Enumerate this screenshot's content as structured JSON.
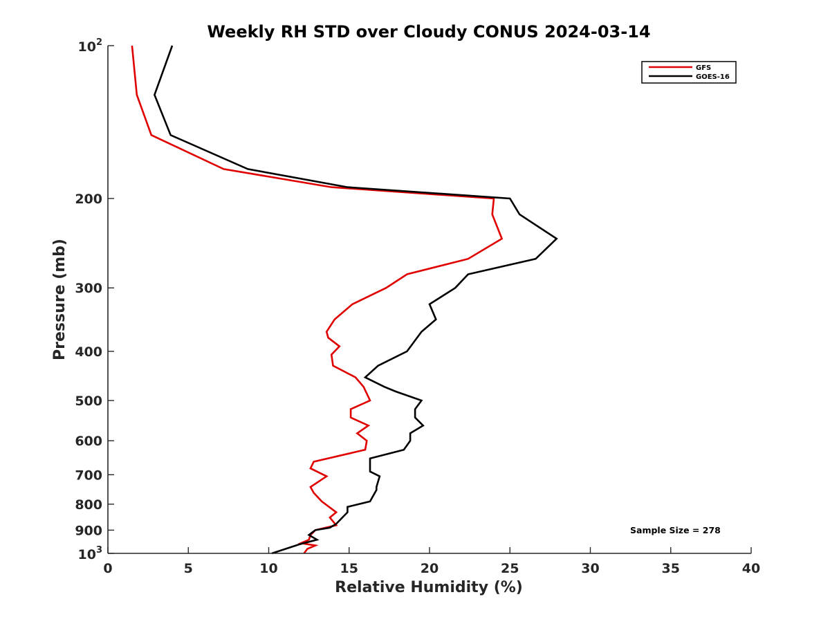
{
  "chart_data": {
    "type": "line",
    "title": "Weekly RH STD over Cloudy CONUS 2024-03-14",
    "xlabel": "Relative Humidity (%)",
    "ylabel": "Pressure (mb)",
    "xlim": [
      0,
      40
    ],
    "ylim": [
      100,
      1000
    ],
    "yscale": "log",
    "y_reversed": true,
    "x_ticks": [
      0,
      5,
      10,
      15,
      20,
      25,
      30,
      35,
      40
    ],
    "y_ticks": [
      {
        "value": 100,
        "base": "10",
        "exp": "2"
      },
      {
        "value": 200,
        "label": "200"
      },
      {
        "value": 300,
        "label": "300"
      },
      {
        "value": 400,
        "label": "400"
      },
      {
        "value": 500,
        "label": "500"
      },
      {
        "value": 600,
        "label": "600"
      },
      {
        "value": 700,
        "label": "700"
      },
      {
        "value": 800,
        "label": "800"
      },
      {
        "value": 900,
        "label": "900"
      },
      {
        "value": 1000,
        "base": "10",
        "exp": "3"
      }
    ],
    "legend_position": "top-right",
    "annotation": "Sample Size = 278",
    "series": [
      {
        "name": "GFS",
        "color": "#e00000",
        "points": [
          [
            1.5,
            100
          ],
          [
            1.8,
            125
          ],
          [
            2.7,
            150
          ],
          [
            7.2,
            175
          ],
          [
            13.9,
            190
          ],
          [
            24.0,
            200
          ],
          [
            23.9,
            215
          ],
          [
            24.5,
            240
          ],
          [
            22.4,
            263
          ],
          [
            18.6,
            282
          ],
          [
            17.3,
            300
          ],
          [
            15.2,
            323
          ],
          [
            14.1,
            346
          ],
          [
            13.6,
            366
          ],
          [
            13.7,
            376
          ],
          [
            14.4,
            391
          ],
          [
            13.9,
            406
          ],
          [
            14.0,
            427
          ],
          [
            15.4,
            450
          ],
          [
            15.9,
            470
          ],
          [
            16.3,
            500
          ],
          [
            15.1,
            520
          ],
          [
            15.1,
            540
          ],
          [
            16.2,
            560
          ],
          [
            15.5,
            580
          ],
          [
            16.1,
            600
          ],
          [
            16.0,
            625
          ],
          [
            12.8,
            660
          ],
          [
            12.6,
            680
          ],
          [
            13.6,
            705
          ],
          [
            12.6,
            740
          ],
          [
            12.8,
            760
          ],
          [
            13.3,
            790
          ],
          [
            14.2,
            830
          ],
          [
            13.8,
            850
          ],
          [
            14.2,
            880
          ],
          [
            12.9,
            900
          ],
          [
            12.6,
            920
          ],
          [
            12.5,
            940
          ],
          [
            12.0,
            955
          ],
          [
            12.9,
            965
          ],
          [
            12.4,
            980
          ],
          [
            12.2,
            1000
          ]
        ]
      },
      {
        "name": "GOES-16",
        "color": "#000000",
        "points": [
          [
            4.0,
            100
          ],
          [
            2.9,
            125
          ],
          [
            3.9,
            150
          ],
          [
            8.7,
            175
          ],
          [
            14.9,
            190
          ],
          [
            25.0,
            200
          ],
          [
            25.6,
            215
          ],
          [
            27.9,
            240
          ],
          [
            26.6,
            263
          ],
          [
            22.4,
            282
          ],
          [
            21.6,
            300
          ],
          [
            20.0,
            323
          ],
          [
            20.4,
            346
          ],
          [
            19.5,
            366
          ],
          [
            18.6,
            400
          ],
          [
            16.8,
            427
          ],
          [
            16.0,
            450
          ],
          [
            17.2,
            470
          ],
          [
            17.9,
            480
          ],
          [
            19.5,
            500
          ],
          [
            19.1,
            520
          ],
          [
            19.1,
            540
          ],
          [
            19.6,
            560
          ],
          [
            18.8,
            580
          ],
          [
            18.8,
            600
          ],
          [
            18.4,
            625
          ],
          [
            16.3,
            650
          ],
          [
            16.3,
            690
          ],
          [
            16.9,
            705
          ],
          [
            16.7,
            740
          ],
          [
            16.7,
            750
          ],
          [
            16.3,
            790
          ],
          [
            14.9,
            810
          ],
          [
            14.9,
            830
          ],
          [
            14.5,
            855
          ],
          [
            14.2,
            875
          ],
          [
            13.8,
            890
          ],
          [
            12.9,
            900
          ],
          [
            12.5,
            920
          ],
          [
            13.0,
            940
          ],
          [
            11.9,
            960
          ],
          [
            10.2,
            1000
          ]
        ]
      }
    ]
  }
}
